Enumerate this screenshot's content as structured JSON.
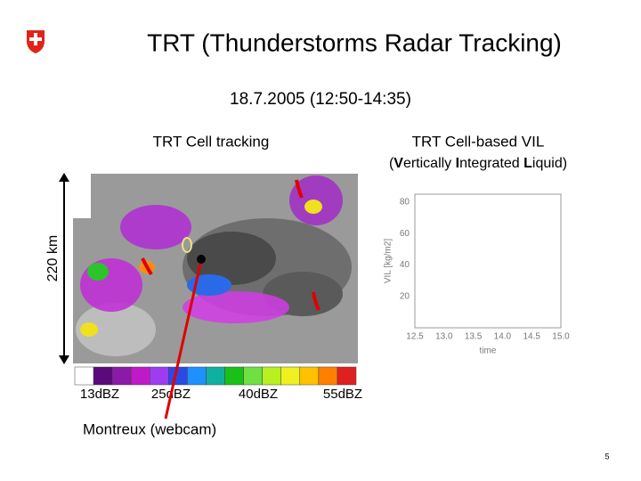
{
  "header": {
    "title": "TRT (Thunderstorms Radar Tracking)",
    "date": "18.7.2005 (12:50-14:35)"
  },
  "left_panel": {
    "title": "TRT Cell tracking",
    "scale_label": "220 km"
  },
  "right_panel": {
    "title": "TRT Cell-based VIL",
    "subtitle_parts": [
      "(",
      "V",
      "ertically ",
      "I",
      "ntegrated ",
      "L",
      "iquid)"
    ],
    "y_axis_label": "VIL [kg/m2]",
    "x_axis_label": "time",
    "y_ticks": [
      "20",
      "40",
      "60",
      "80"
    ],
    "x_ticks": [
      "12.5",
      "13.0",
      "13.5",
      "14.0",
      "14.5",
      "15.0"
    ]
  },
  "color_scale": {
    "labels": [
      "13dBZ",
      "25dBZ",
      "40dBZ",
      "55dBZ"
    ]
  },
  "annotation": "Montreux (webcam)",
  "page_number": "5"
}
